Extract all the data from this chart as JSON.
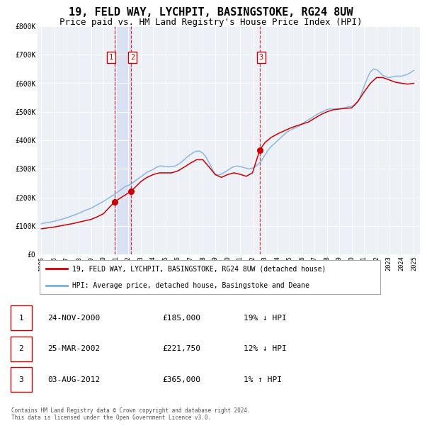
{
  "title": "19, FELD WAY, LYCHPIT, BASINGSTOKE, RG24 8UW",
  "subtitle": "Price paid vs. HM Land Registry's House Price Index (HPI)",
  "title_fontsize": 11,
  "subtitle_fontsize": 9,
  "background_color": "#ffffff",
  "plot_bg_color": "#eef0f8",
  "grid_color": "#ffffff",
  "ylim": [
    0,
    800000
  ],
  "yticks": [
    0,
    100000,
    200000,
    300000,
    400000,
    500000,
    600000,
    700000,
    800000
  ],
  "ytick_labels": [
    "£0",
    "£100K",
    "£200K",
    "£300K",
    "£400K",
    "£500K",
    "£600K",
    "£700K",
    "£800K"
  ],
  "xlim_start": 1994.7,
  "xlim_end": 2025.5,
  "xticks": [
    1995,
    1996,
    1997,
    1998,
    1999,
    2000,
    2001,
    2002,
    2003,
    2004,
    2005,
    2006,
    2007,
    2008,
    2009,
    2010,
    2011,
    2012,
    2013,
    2014,
    2015,
    2016,
    2017,
    2018,
    2019,
    2020,
    2021,
    2022,
    2023,
    2024,
    2025
  ],
  "legend_line1": "19, FELD WAY, LYCHPIT, BASINGSTOKE, RG24 8UW (detached house)",
  "legend_line2": "HPI: Average price, detached house, Basingstoke and Deane",
  "legend_line1_color": "#cc0000",
  "legend_line2_color": "#7aaddc",
  "table_rows": [
    {
      "num": "1",
      "date": "24-NOV-2000",
      "price": "£185,000",
      "hpi": "19% ↓ HPI"
    },
    {
      "num": "2",
      "date": "25-MAR-2002",
      "price": "£221,750",
      "hpi": "12% ↓ HPI"
    },
    {
      "num": "3",
      "date": "03-AUG-2012",
      "price": "£365,000",
      "hpi": "1% ↑ HPI"
    }
  ],
  "sale1_x": 2000.9,
  "sale1_y": 185000,
  "sale2_x": 2002.23,
  "sale2_y": 221750,
  "sale3_x": 2012.58,
  "sale3_y": 365000,
  "vline1_x": 2000.9,
  "vline2_x": 2002.23,
  "vline3_x": 2012.58,
  "copyright_text": "Contains HM Land Registry data © Crown copyright and database right 2024.\nThis data is licensed under the Open Government Licence v3.0.",
  "hpi_color": "#7aaddc",
  "price_color": "#cc0000",
  "hpi_x": [
    1995.0,
    1995.25,
    1995.5,
    1995.75,
    1996.0,
    1996.25,
    1996.5,
    1996.75,
    1997.0,
    1997.25,
    1997.5,
    1997.75,
    1998.0,
    1998.25,
    1998.5,
    1998.75,
    1999.0,
    1999.25,
    1999.5,
    1999.75,
    2000.0,
    2000.25,
    2000.5,
    2000.75,
    2001.0,
    2001.25,
    2001.5,
    2001.75,
    2002.0,
    2002.25,
    2002.5,
    2002.75,
    2003.0,
    2003.25,
    2003.5,
    2003.75,
    2004.0,
    2004.25,
    2004.5,
    2004.75,
    2005.0,
    2005.25,
    2005.5,
    2005.75,
    2006.0,
    2006.25,
    2006.5,
    2006.75,
    2007.0,
    2007.25,
    2007.5,
    2007.75,
    2008.0,
    2008.25,
    2008.5,
    2008.75,
    2009.0,
    2009.25,
    2009.5,
    2009.75,
    2010.0,
    2010.25,
    2010.5,
    2010.75,
    2011.0,
    2011.25,
    2011.5,
    2011.75,
    2012.0,
    2012.25,
    2012.5,
    2012.75,
    2013.0,
    2013.25,
    2013.5,
    2013.75,
    2014.0,
    2014.25,
    2014.5,
    2014.75,
    2015.0,
    2015.25,
    2015.5,
    2015.75,
    2016.0,
    2016.25,
    2016.5,
    2016.75,
    2017.0,
    2017.25,
    2017.5,
    2017.75,
    2018.0,
    2018.25,
    2018.5,
    2018.75,
    2019.0,
    2019.25,
    2019.5,
    2019.75,
    2020.0,
    2020.25,
    2020.5,
    2020.75,
    2021.0,
    2021.25,
    2021.5,
    2021.75,
    2022.0,
    2022.25,
    2022.5,
    2022.75,
    2023.0,
    2023.25,
    2023.5,
    2023.75,
    2024.0,
    2024.25,
    2024.5,
    2024.75,
    2025.0
  ],
  "hpi_y": [
    108000,
    110000,
    112000,
    114000,
    116000,
    119000,
    122000,
    125000,
    128000,
    132000,
    136000,
    140000,
    144000,
    149000,
    154000,
    158000,
    162000,
    168000,
    174000,
    180000,
    186000,
    193000,
    200000,
    207000,
    214000,
    222000,
    230000,
    238000,
    242000,
    248000,
    256000,
    264000,
    272000,
    280000,
    288000,
    293000,
    298000,
    305000,
    310000,
    310000,
    308000,
    307000,
    308000,
    310000,
    315000,
    323000,
    332000,
    342000,
    350000,
    358000,
    362000,
    362000,
    355000,
    342000,
    322000,
    300000,
    282000,
    278000,
    282000,
    288000,
    295000,
    302000,
    308000,
    310000,
    308000,
    305000,
    302000,
    300000,
    302000,
    308000,
    318000,
    330000,
    348000,
    365000,
    378000,
    388000,
    398000,
    408000,
    418000,
    428000,
    435000,
    440000,
    445000,
    450000,
    458000,
    465000,
    472000,
    478000,
    485000,
    492000,
    498000,
    502000,
    508000,
    510000,
    510000,
    510000,
    510000,
    512000,
    515000,
    518000,
    520000,
    522000,
    535000,
    560000,
    590000,
    618000,
    640000,
    650000,
    648000,
    638000,
    628000,
    622000,
    620000,
    622000,
    625000,
    625000,
    625000,
    628000,
    632000,
    638000,
    645000
  ],
  "price_x": [
    1995.0,
    1995.5,
    1996.0,
    1996.5,
    1997.0,
    1997.5,
    1998.0,
    1998.5,
    1999.0,
    1999.5,
    2000.0,
    2000.9,
    2002.23,
    2003.0,
    2003.5,
    2004.0,
    2004.5,
    2005.0,
    2005.5,
    2006.0,
    2006.5,
    2007.0,
    2007.5,
    2008.0,
    2008.5,
    2009.0,
    2009.5,
    2010.0,
    2010.5,
    2011.0,
    2011.5,
    2012.0,
    2012.58,
    2013.0,
    2013.5,
    2014.0,
    2014.5,
    2015.0,
    2015.5,
    2016.0,
    2016.5,
    2017.0,
    2017.5,
    2018.0,
    2018.5,
    2019.0,
    2019.5,
    2020.0,
    2020.5,
    2021.0,
    2021.5,
    2022.0,
    2022.5,
    2023.0,
    2023.5,
    2024.0,
    2024.5,
    2025.0
  ],
  "price_y": [
    90000,
    93000,
    96000,
    100000,
    104000,
    108000,
    113000,
    118000,
    123000,
    132000,
    143000,
    185000,
    221750,
    255000,
    270000,
    280000,
    286000,
    286000,
    286000,
    293000,
    306000,
    320000,
    332000,
    332000,
    307000,
    280000,
    270000,
    280000,
    286000,
    281000,
    274000,
    286000,
    365000,
    392000,
    410000,
    422000,
    432000,
    442000,
    450000,
    457000,
    464000,
    477000,
    490000,
    500000,
    507000,
    510000,
    512000,
    514000,
    537000,
    570000,
    600000,
    620000,
    620000,
    612000,
    604000,
    600000,
    597000,
    600000
  ]
}
